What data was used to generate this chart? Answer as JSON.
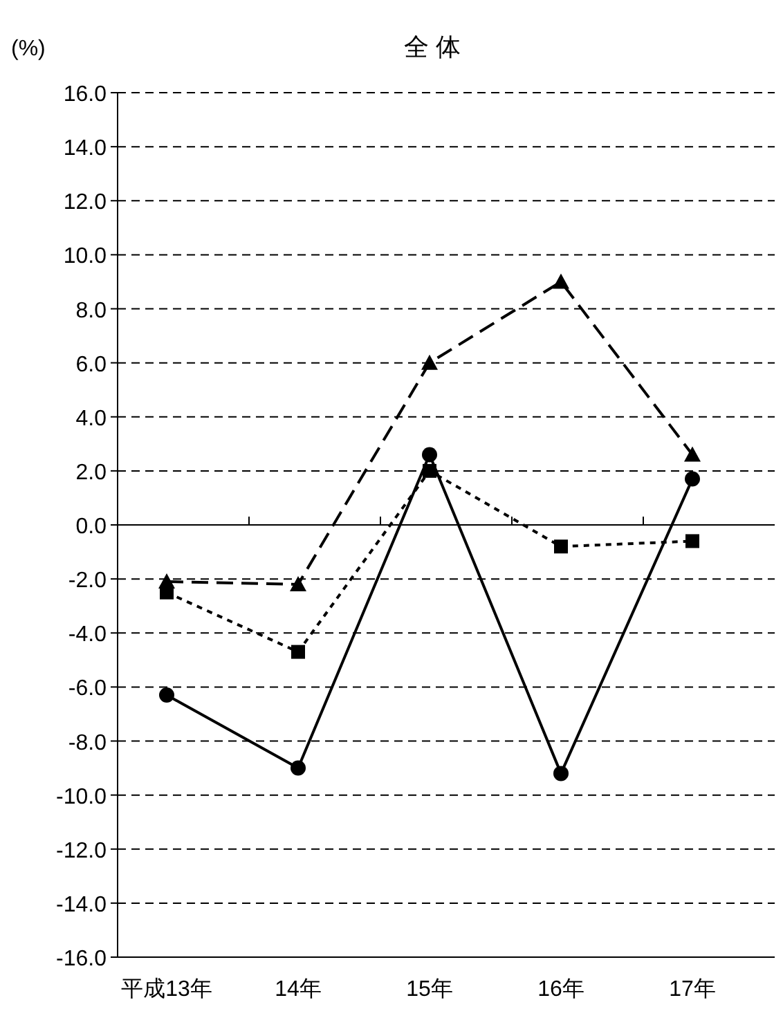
{
  "chart_data": {
    "type": "line",
    "title": "全 体",
    "ylabel": "(%)",
    "categories": [
      "平成13年",
      "14年",
      "15年",
      "16年",
      "17年"
    ],
    "series": [
      {
        "color": "#000000",
        "marker": "circle",
        "line_style": "solid",
        "values": [
          -6.3,
          -9.0,
          2.6,
          -9.2,
          1.7
        ]
      },
      {
        "color": "#000000",
        "marker": "square",
        "line_style": "dotted",
        "values": [
          -2.5,
          -4.7,
          2.0,
          -0.8,
          -0.6
        ]
      },
      {
        "color": "#000000",
        "marker": "triangle",
        "line_style": "dashed",
        "values": [
          -2.1,
          -2.2,
          6.0,
          9.0,
          2.6
        ]
      }
    ],
    "ylim": [
      -16,
      16
    ],
    "yticks": [
      {
        "value": -16,
        "label": "-16.0"
      },
      {
        "value": -14,
        "label": "-14.0"
      },
      {
        "value": -12,
        "label": "-12.0"
      },
      {
        "value": -10,
        "label": "-10.0"
      },
      {
        "value": -8,
        "label": "-8.0"
      },
      {
        "value": -6,
        "label": "-6.0"
      },
      {
        "value": -4,
        "label": "-4.0"
      },
      {
        "value": -2,
        "label": "-2.0"
      },
      {
        "value": 0,
        "label": "0.0"
      },
      {
        "value": 2,
        "label": "2.0"
      },
      {
        "value": 4,
        "label": "4.0"
      },
      {
        "value": 6,
        "label": "6.0"
      },
      {
        "value": 8,
        "label": "8.0"
      },
      {
        "value": 10,
        "label": "10.0"
      },
      {
        "value": 12,
        "label": "12.0"
      },
      {
        "value": 14,
        "label": "14.0"
      },
      {
        "value": 16,
        "label": "16.0"
      }
    ],
    "grid": "y"
  }
}
